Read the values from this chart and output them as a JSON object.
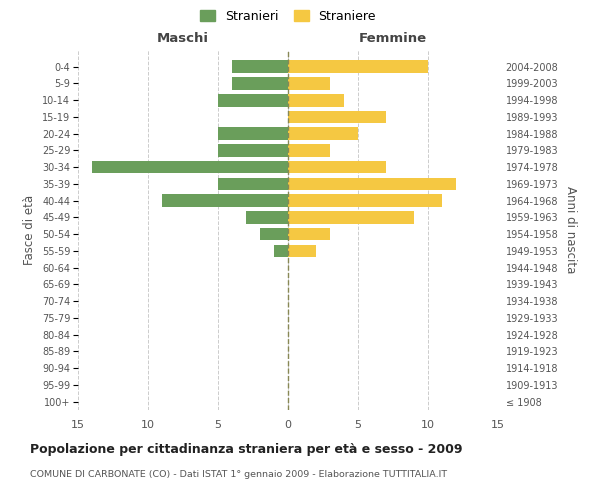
{
  "age_groups": [
    "100+",
    "95-99",
    "90-94",
    "85-89",
    "80-84",
    "75-79",
    "70-74",
    "65-69",
    "60-64",
    "55-59",
    "50-54",
    "45-49",
    "40-44",
    "35-39",
    "30-34",
    "25-29",
    "20-24",
    "15-19",
    "10-14",
    "5-9",
    "0-4"
  ],
  "birth_years": [
    "≤ 1908",
    "1909-1913",
    "1914-1918",
    "1919-1923",
    "1924-1928",
    "1929-1933",
    "1934-1938",
    "1939-1943",
    "1944-1948",
    "1949-1953",
    "1954-1958",
    "1959-1963",
    "1964-1968",
    "1969-1973",
    "1974-1978",
    "1979-1983",
    "1984-1988",
    "1989-1993",
    "1994-1998",
    "1999-2003",
    "2004-2008"
  ],
  "maschi": [
    0,
    0,
    0,
    0,
    0,
    0,
    0,
    0,
    0,
    1,
    2,
    3,
    9,
    5,
    14,
    5,
    5,
    0,
    5,
    4,
    4
  ],
  "femmine": [
    0,
    0,
    0,
    0,
    0,
    0,
    0,
    0,
    0,
    2,
    3,
    9,
    11,
    12,
    7,
    3,
    5,
    7,
    4,
    3,
    10
  ],
  "maschi_color": "#6a9e5b",
  "femmine_color": "#f5c842",
  "title": "Popolazione per cittadinanza straniera per età e sesso - 2009",
  "subtitle": "COMUNE DI CARBONATE (CO) - Dati ISTAT 1° gennaio 2009 - Elaborazione TUTTITALIA.IT",
  "xlabel_left": "Maschi",
  "xlabel_right": "Femmine",
  "ylabel_left": "Fasce di età",
  "ylabel_right": "Anni di nascita",
  "legend_stranieri": "Stranieri",
  "legend_straniere": "Straniere",
  "xlim": 15,
  "bg_color": "#ffffff",
  "grid_color": "#cccccc"
}
